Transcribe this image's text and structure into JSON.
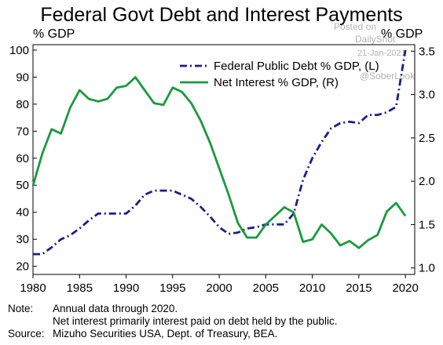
{
  "title": "Federal Govt Debt and Interest Payments",
  "watermark": {
    "posted": "Posted on",
    "site": "DailyShot",
    "date": "21-Jan-2021",
    "handle": "@SoberLook"
  },
  "notes": {
    "note_label": "Note:",
    "note_line1": "Annual data through 2020.",
    "note_line2": "Net interest primarily interest paid on debt held by the public.",
    "source_label": "Source:",
    "source_text": "Mizuho Securities USA, Dept. of Treasury, BEA."
  },
  "chart_data": {
    "type": "line",
    "title": "Federal Govt Debt and Interest Payments",
    "x": [
      1980,
      1981,
      1982,
      1983,
      1984,
      1985,
      1986,
      1987,
      1988,
      1989,
      1990,
      1991,
      1992,
      1993,
      1994,
      1995,
      1996,
      1997,
      1998,
      1999,
      2000,
      2001,
      2002,
      2003,
      2004,
      2005,
      2006,
      2007,
      2008,
      2009,
      2010,
      2011,
      2012,
      2013,
      2014,
      2015,
      2016,
      2017,
      2018,
      2019,
      2020
    ],
    "xlim": [
      1980,
      2021
    ],
    "xticks": [
      1980,
      1985,
      1990,
      1995,
      2000,
      2005,
      2010,
      2015,
      2020
    ],
    "y_left": {
      "label": "% GDP",
      "lim": [
        17,
        102
      ],
      "ticks": [
        20,
        30,
        40,
        50,
        60,
        70,
        80,
        90,
        100
      ]
    },
    "y_right": {
      "label": "% GDP",
      "lim": [
        0.925,
        3.575
      ],
      "ticks": [
        "1.0",
        "1.5",
        "2.0",
        "2.5",
        "3.0",
        "3.5"
      ]
    },
    "series": [
      {
        "name": "Federal Public Debt % GDP, (L)",
        "axis": "left",
        "style": "dash-dot",
        "color": "#1a1f8c",
        "values": [
          24.5,
          24.5,
          27,
          30,
          31.5,
          34,
          37,
          39.5,
          39.5,
          39.5,
          39.5,
          42.5,
          46.5,
          48,
          48,
          48,
          46.5,
          45,
          42,
          38.5,
          34.5,
          32,
          32.5,
          34,
          34.5,
          35.5,
          35.5,
          35.5,
          39.5,
          52,
          60,
          66,
          71,
          73,
          73.5,
          73,
          76,
          76,
          77,
          79,
          100
        ]
      },
      {
        "name": "Net Interest % GDP, (R)",
        "axis": "right",
        "style": "solid",
        "color": "#1b9a3c",
        "values": [
          1.95,
          2.32,
          2.6,
          2.55,
          2.85,
          3.05,
          2.95,
          2.92,
          2.95,
          3.08,
          3.1,
          3.2,
          3.05,
          2.9,
          2.88,
          3.08,
          3.03,
          2.9,
          2.7,
          2.45,
          2.15,
          1.85,
          1.52,
          1.35,
          1.35,
          1.5,
          1.6,
          1.7,
          1.64,
          1.3,
          1.33,
          1.5,
          1.4,
          1.26,
          1.31,
          1.23,
          1.32,
          1.38,
          1.65,
          1.75,
          1.6
        ]
      }
    ],
    "legend_position": "top-right",
    "grid": false
  }
}
